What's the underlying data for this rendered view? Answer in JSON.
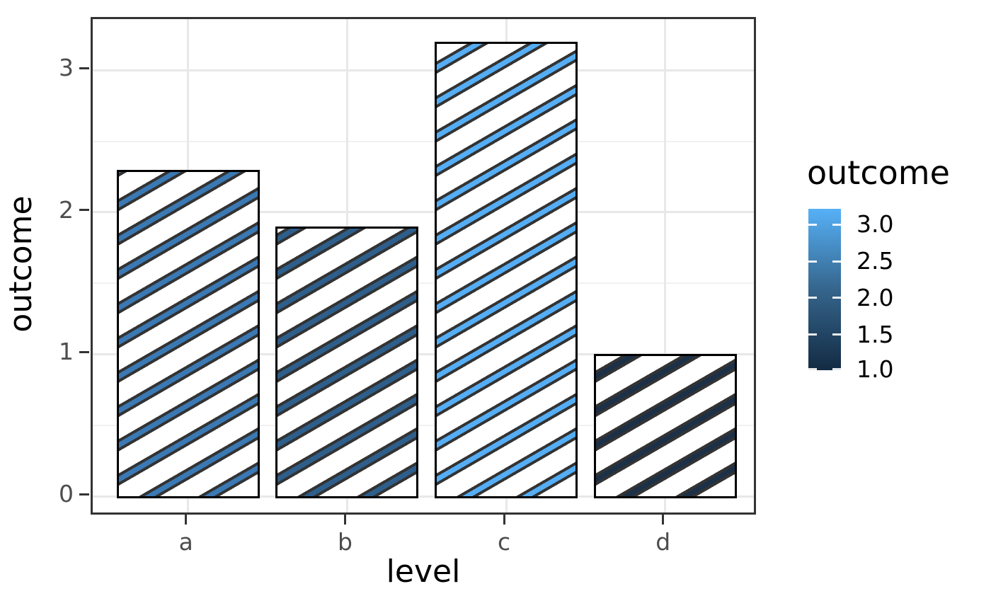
{
  "chart_data": {
    "type": "bar",
    "title": "",
    "xlabel": "level",
    "ylabel": "outcome",
    "categories": [
      "a",
      "b",
      "c",
      "d"
    ],
    "values": [
      2.3,
      1.9,
      3.2,
      1.0
    ],
    "ylim": [
      0,
      3.36
    ],
    "yticks": [
      0,
      1,
      2,
      3
    ],
    "ytick_labels": [
      "0",
      "1",
      "2",
      "3"
    ],
    "yminor": [
      0.5,
      1.5,
      2.5
    ],
    "grid": "major and minor horizontal, major vertical at category centers",
    "fill_style": "diagonal stripe hatching, stripe color encodes outcome value",
    "stripe_colors": [
      "#3A79B4",
      "#2E5F8C",
      "#55AEF5",
      "#1C3048"
    ],
    "stripe_edge_color": "#333333",
    "bar_outline_color": "#000000",
    "legend": {
      "title": "outcome",
      "type": "colorbar",
      "position": "right",
      "range": [
        1.0,
        3.2
      ],
      "tick_values": [
        3.0,
        2.5,
        2.0,
        1.5,
        1.0
      ],
      "tick_labels": [
        "3.0",
        "2.5",
        "2.0",
        "1.5",
        "1.0"
      ],
      "high_color": "#56B1F7",
      "mid_color": "#35658C",
      "low_color": "#132B43"
    },
    "colors": {
      "panel_border": "#333333",
      "grid_major": "#E8E8E8",
      "grid_minor": "#F1F1F1",
      "tick_label": "#4D4D4D",
      "axis_title": "#000000",
      "background": "#FFFFFF"
    }
  }
}
